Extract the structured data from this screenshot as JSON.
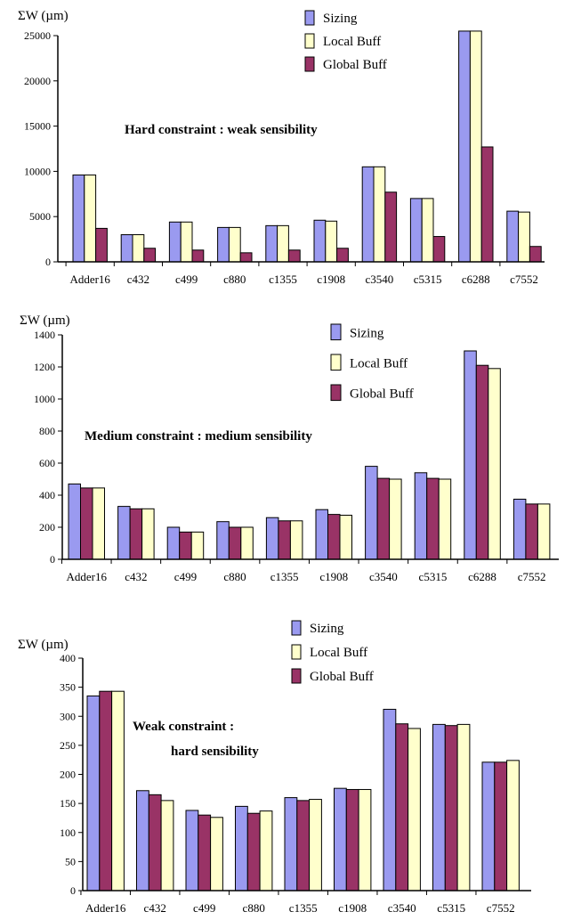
{
  "colors": {
    "sizing": "#9a9af0",
    "local_buff": "#ffffcc",
    "global_buff": "#993366",
    "stroke": "#000000"
  },
  "chart_data": [
    {
      "type": "bar",
      "ylabel": "ΣW  (µm)",
      "ylim": [
        0,
        25000
      ],
      "yticks": [
        0,
        5000,
        10000,
        15000,
        20000,
        25000
      ],
      "annotation": [
        "Hard constraint : weak sensibility"
      ],
      "legend_placement": "top-right",
      "categories": [
        "Adder16",
        "c432",
        "c499",
        "c880",
        "c1355",
        "c1908",
        "c3540",
        "c5315",
        "c6288",
        "c7552"
      ],
      "series": [
        {
          "name": "Sizing",
          "color_key": "sizing",
          "values": [
            9600,
            3000,
            4400,
            3800,
            4000,
            4600,
            10500,
            7000,
            25500,
            5600
          ]
        },
        {
          "name": "Local Buff",
          "color_key": "local_buff",
          "values": [
            9600,
            3000,
            4400,
            3800,
            4000,
            4500,
            10500,
            7000,
            25500,
            5500
          ]
        },
        {
          "name": "Global Buff",
          "color_key": "global_buff",
          "values": [
            3700,
            1500,
            1300,
            1000,
            1300,
            1500,
            7700,
            2800,
            12700,
            1700
          ]
        }
      ]
    },
    {
      "type": "bar",
      "ylabel": "ΣW   (µm)",
      "ylim": [
        0,
        1400
      ],
      "yticks": [
        0,
        200,
        400,
        600,
        800,
        1000,
        1200,
        1400
      ],
      "annotation": [
        "Medium constraint : medium sensibility"
      ],
      "legend_placement": "top-right",
      "categories": [
        "Adder16",
        "c432",
        "c499",
        "c880",
        "c1355",
        "c1908",
        "c3540",
        "c5315",
        "c6288",
        "c7552"
      ],
      "series": [
        {
          "name": "Sizing",
          "color_key": "sizing",
          "values": [
            470,
            330,
            200,
            235,
            260,
            310,
            580,
            540,
            1300,
            375
          ]
        },
        {
          "name": "Global Buff",
          "color_key": "global_buff",
          "values": [
            445,
            315,
            170,
            200,
            240,
            280,
            505,
            505,
            1210,
            345
          ]
        },
        {
          "name": "Local Buff",
          "color_key": "local_buff",
          "values": [
            445,
            315,
            170,
            200,
            240,
            275,
            500,
            500,
            1190,
            345
          ]
        }
      ]
    },
    {
      "type": "bar",
      "ylabel": "ΣW (µm)",
      "ylim": [
        0,
        400
      ],
      "yticks": [
        0,
        50,
        100,
        150,
        200,
        250,
        300,
        350,
        400
      ],
      "annotation": [
        "Weak constraint :",
        "hard sensibility"
      ],
      "legend_placement": "top-right",
      "categories": [
        "Adder16",
        "c432",
        "c499",
        "c880",
        "c1355",
        "c1908",
        "c3540",
        "c5315",
        "c7552"
      ],
      "series": [
        {
          "name": "Sizing",
          "color_key": "sizing",
          "values": [
            335,
            172,
            138,
            145,
            160,
            176,
            312,
            286,
            221
          ]
        },
        {
          "name": "Global Buff",
          "color_key": "global_buff",
          "values": [
            343,
            165,
            130,
            133,
            155,
            174,
            287,
            284,
            221
          ]
        },
        {
          "name": "Local Buff",
          "color_key": "local_buff",
          "values": [
            343,
            155,
            126,
            137,
            157,
            174,
            279,
            286,
            224
          ]
        }
      ]
    }
  ],
  "legends": [
    [
      "Sizing",
      "Local Buff",
      "Global Buff"
    ],
    [
      "Sizing",
      "Local Buff",
      "Global Buff"
    ],
    [
      "Sizing",
      "Local Buff",
      "Global Buff"
    ]
  ]
}
